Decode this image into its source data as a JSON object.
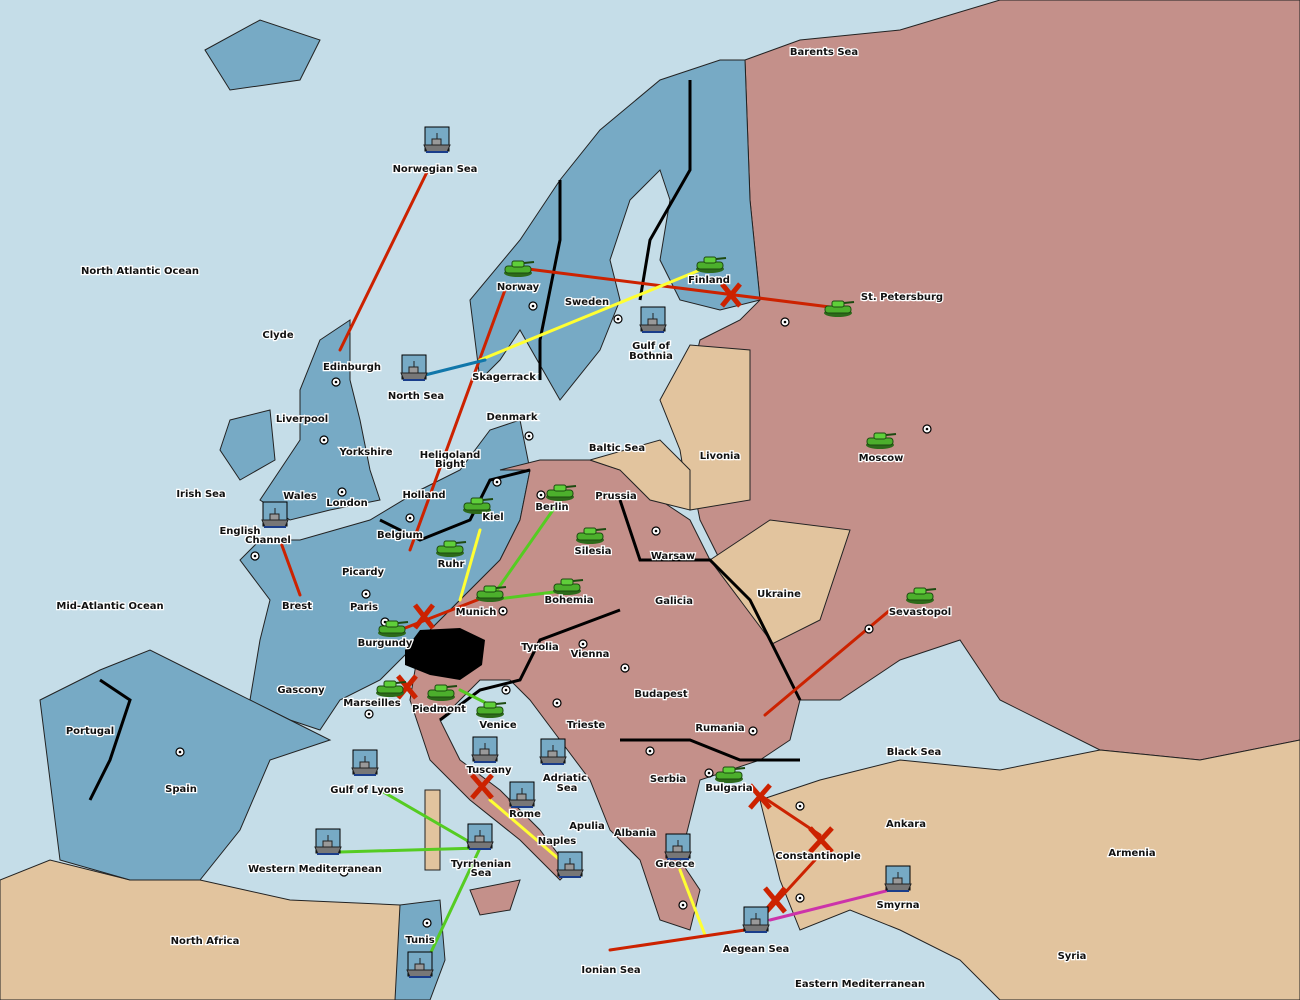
{
  "colors": {
    "sea": "#c5dde8",
    "power_blue": "#77aac5",
    "power_pink": "#c4908a",
    "neutral_tan": "#e2c49e",
    "impassable": "#000000",
    "order_red": "#cc2200",
    "order_green": "#55cc22",
    "order_yellow": "#ffff33",
    "order_magenta": "#cc33aa",
    "order_teal": "#1177aa"
  },
  "labels": {
    "barents": "Barents Sea",
    "norwegian": "Norwegian Sea",
    "nao": "North Atlantic Ocean",
    "clyde": "Clyde",
    "edinburgh": "Edinburgh",
    "liverpool": "Liverpool",
    "yorkshire": "Yorkshire",
    "wales": "Wales",
    "london": "London",
    "irish": "Irish Sea",
    "english1": "English",
    "english2": "Channel",
    "mao": "Mid-Atlantic Ocean",
    "northsea": "North Sea",
    "skagerrack": "Skagerrack",
    "norway": "Norway",
    "sweden": "Sweden",
    "finland": "Finland",
    "stpete": "St. Petersburg",
    "gob1": "Gulf of",
    "gob2": "Bothnia",
    "denmark": "Denmark",
    "baltic": "Baltic Sea",
    "livonia": "Livonia",
    "moscow": "Moscow",
    "helgo1": "Heligoland",
    "helgo2": "Bight",
    "holland": "Holland",
    "belgium": "Belgium",
    "kiel": "Kiel",
    "berlin": "Berlin",
    "prussia": "Prussia",
    "ruhr": "Ruhr",
    "silesia": "Silesia",
    "warsaw": "Warsaw",
    "picardy": "Picardy",
    "brest": "Brest",
    "paris": "Paris",
    "munich": "Munich",
    "bohemia": "Bohemia",
    "galicia": "Galicia",
    "ukraine": "Ukraine",
    "sevastopol": "Sevastopol",
    "burgundy": "Burgundy",
    "tyrolia": "Tyrolia",
    "vienna": "Vienna",
    "budapest": "Budapest",
    "gascony": "Gascony",
    "marseilles": "Marseilles",
    "piedmont": "Piedmont",
    "venice": "Venice",
    "trieste": "Trieste",
    "rumania": "Rumania",
    "blacksea": "Black Sea",
    "portugal": "Portugal",
    "spain": "Spain",
    "gol": "Gulf of Lyons",
    "tuscany": "Tuscany",
    "adriatic1": "Adriatic",
    "adriatic2": "Sea",
    "serbia": "Serbia",
    "bulgaria": "Bulgaria",
    "ankara": "Ankara",
    "armenia": "Armenia",
    "rome": "Rome",
    "apulia": "Apulia",
    "albania": "Albania",
    "naples": "Naples",
    "constantinople": "Constantinople",
    "wmed": "Western Mediterranean",
    "tyrr1": "Tyrrhenian",
    "tyrr2": "Sea",
    "greece": "Greece",
    "smyrna": "Smyrna",
    "northafrica": "North Africa",
    "tunis": "Tunis",
    "ionian": "Ionian Sea",
    "aegean": "Aegean Sea",
    "emed": "Eastern Mediterranean",
    "syria": "Syria"
  },
  "units": [
    {
      "type": "fleet",
      "province": "Norwegian Sea"
    },
    {
      "type": "army",
      "province": "Norway"
    },
    {
      "type": "army",
      "province": "Finland"
    },
    {
      "type": "army",
      "province": "St. Petersburg"
    },
    {
      "type": "fleet",
      "province": "Gulf of Bothnia"
    },
    {
      "type": "fleet",
      "province": "North Sea"
    },
    {
      "type": "army",
      "province": "Moscow"
    },
    {
      "type": "fleet",
      "province": "English Channel"
    },
    {
      "type": "army",
      "province": "Kiel"
    },
    {
      "type": "army",
      "province": "Berlin"
    },
    {
      "type": "army",
      "province": "Silesia"
    },
    {
      "type": "army",
      "province": "Ruhr"
    },
    {
      "type": "army",
      "province": "Munich"
    },
    {
      "type": "army",
      "province": "Bohemia"
    },
    {
      "type": "army",
      "province": "Burgundy"
    },
    {
      "type": "army",
      "province": "Sevastopol"
    },
    {
      "type": "army",
      "province": "Marseilles"
    },
    {
      "type": "army",
      "province": "Piedmont"
    },
    {
      "type": "army",
      "province": "Venice"
    },
    {
      "type": "fleet",
      "province": "Gulf of Lyons"
    },
    {
      "type": "fleet",
      "province": "Tuscany"
    },
    {
      "type": "fleet",
      "province": "Adriatic Sea"
    },
    {
      "type": "army",
      "province": "Bulgaria"
    },
    {
      "type": "fleet",
      "province": "Rome"
    },
    {
      "type": "fleet",
      "province": "Western Mediterranean"
    },
    {
      "type": "fleet",
      "province": "Tyrrhenian Sea"
    },
    {
      "type": "fleet",
      "province": "Naples"
    },
    {
      "type": "fleet",
      "province": "Greece"
    },
    {
      "type": "fleet",
      "province": "Smyrna"
    },
    {
      "type": "fleet",
      "province": "Aegean Sea"
    },
    {
      "type": "fleet",
      "province": "Tunis"
    }
  ]
}
